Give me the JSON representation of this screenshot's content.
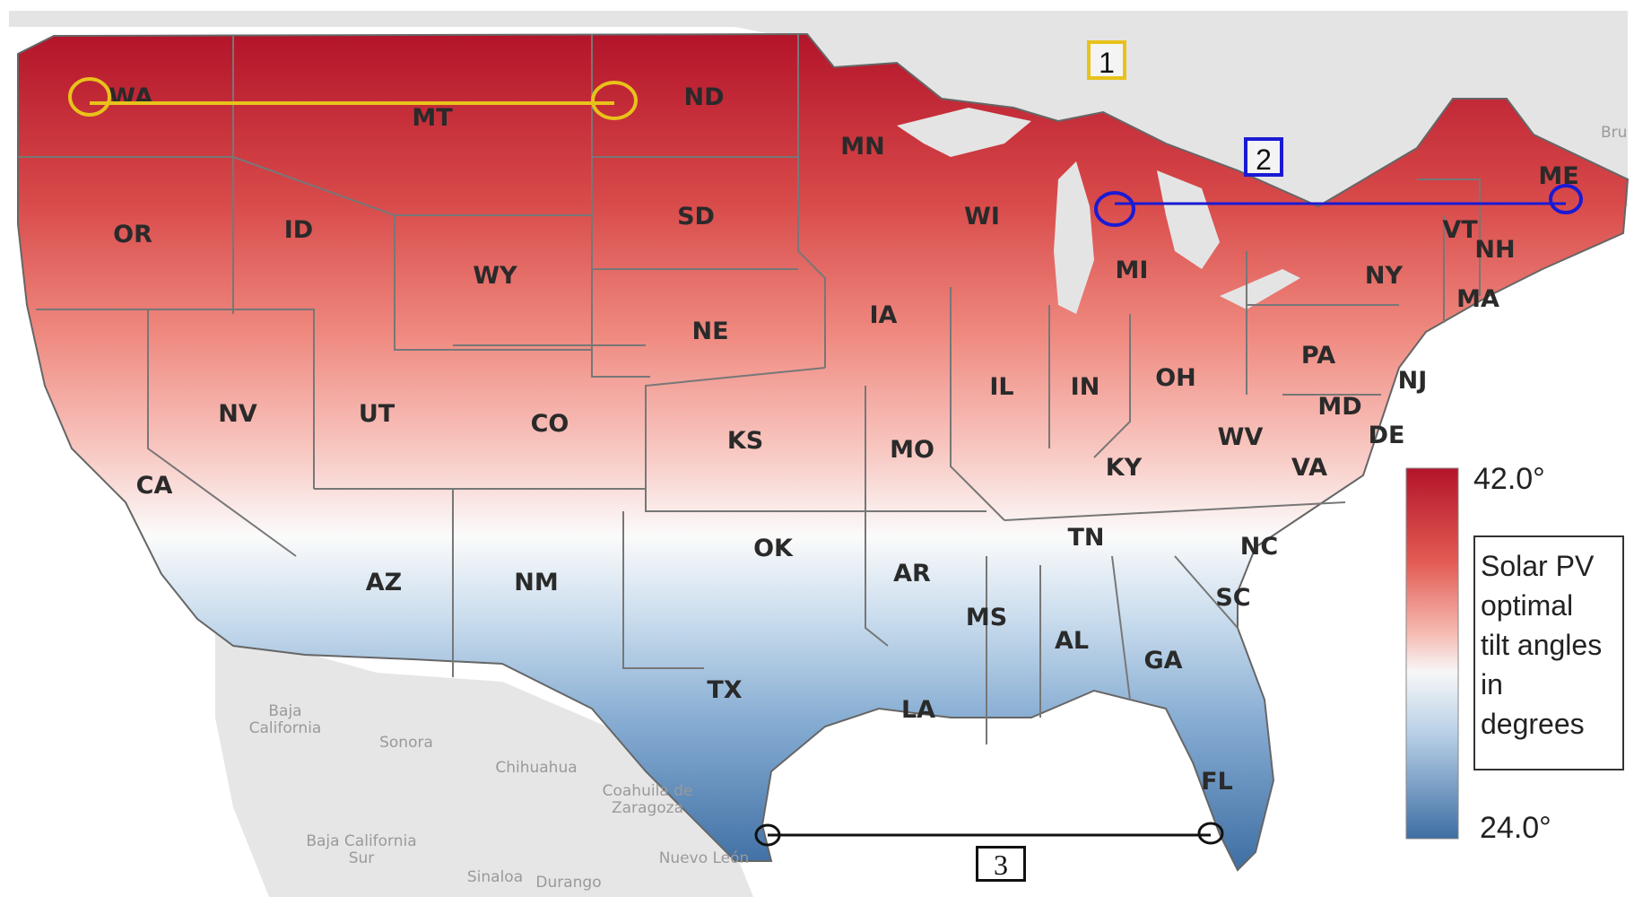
{
  "colors": {
    "scale_high": "#b3142a",
    "scale_mid": "#fbfbfb",
    "scale_low": "#3e6ea3",
    "line1": "#e8c21a",
    "line2": "#1a1ad4",
    "line3": "#111111",
    "land_outside": "#e2e2e2"
  },
  "states": [
    "WA",
    "MT",
    "ND",
    "MN",
    "ME",
    "OR",
    "ID",
    "SD",
    "WI",
    "MI",
    "VT",
    "NH",
    "NY",
    "WY",
    "IA",
    "NE",
    "MA",
    "PA",
    "NV",
    "UT",
    "CO",
    "IL",
    "IN",
    "OH",
    "NJ",
    "MD",
    "DE",
    "KS",
    "MO",
    "WV",
    "KY",
    "VA",
    "CA",
    "TN",
    "NC",
    "OK",
    "AR",
    "AZ",
    "NM",
    "SC",
    "MS",
    "AL",
    "GA",
    "TX",
    "LA",
    "FL"
  ],
  "places": [
    "Baja California",
    "Sonora",
    "Chihuahua",
    "Coahuila de Zaragoza",
    "Baja California Sur",
    "Nuevo León",
    "Sinaloa",
    "Durango"
  ],
  "place_partial_label": "Bru",
  "markers": [
    {
      "id": "1",
      "label": "1",
      "icon": "yellow-circle"
    },
    {
      "id": "2",
      "label": "2",
      "icon": "blue-circle"
    },
    {
      "id": "3",
      "label": "3",
      "icon": "black-circle"
    }
  ],
  "legend": {
    "max_label": "42.0°",
    "min_label": "24.0°",
    "title_lines": [
      "Solar PV",
      "optimal",
      "tilt angles",
      "in",
      "degrees"
    ],
    "range": [
      24.0,
      42.0
    ]
  }
}
